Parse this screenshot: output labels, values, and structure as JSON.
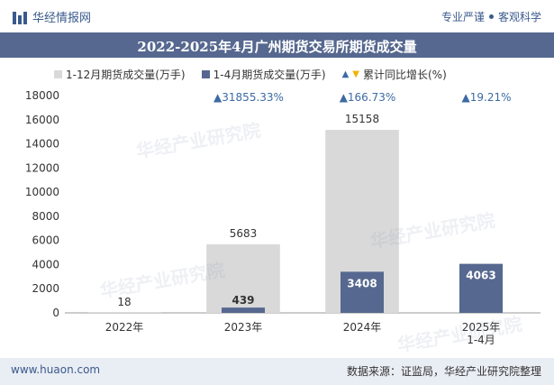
{
  "header": {
    "brand": "华经情报网",
    "slogan_left": "专业严谨",
    "slogan_right": "客观科学"
  },
  "title_text": "2022-2025年4月广州期货交易所期货成交量",
  "watermark_text": "华经产业研究院",
  "watermark_url": "www.huaon.com",
  "footer": {
    "site": "www.huaon.com",
    "source": "数据来源：证监局，华经产业研究院整理"
  },
  "colors": {
    "series1": "#d9d9d9",
    "series2": "#56688f",
    "up": "#3d6aa3",
    "down": "#f0b400"
  },
  "chart_data": {
    "type": "bar",
    "title": "2022-2025年4月广州期货交易所期货成交量",
    "categories": [
      "2022年",
      "2023年",
      "2024年",
      "2025年\n1-4月"
    ],
    "series": [
      {
        "name": "1-12月期货成交量(万手)",
        "values": [
          18,
          5683,
          15158,
          null
        ]
      },
      {
        "name": "1-4月期货成交量(万手)",
        "values": [
          null,
          439,
          3408,
          4063
        ]
      },
      {
        "name": "累计同比增长(%)",
        "values": [
          null,
          "▲31855.33%",
          "▲166.73%",
          "▲19.21%"
        ]
      }
    ],
    "ylim": [
      0,
      18000
    ],
    "yticks": [
      0,
      2000,
      4000,
      6000,
      8000,
      10000,
      12000,
      14000,
      16000,
      18000
    ],
    "legend_position": "top",
    "grid": false
  }
}
